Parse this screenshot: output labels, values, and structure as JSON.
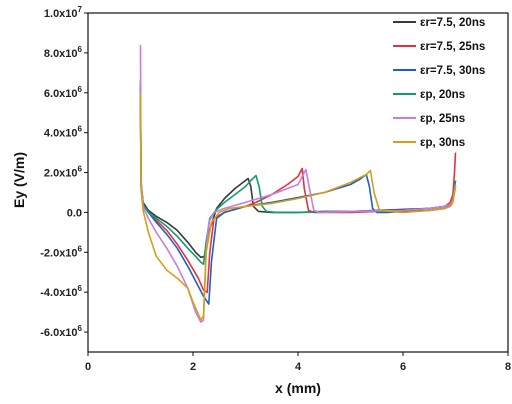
{
  "chart_data": {
    "type": "line",
    "xlabel": "x (mm)",
    "ylabel": "Ey (V/m)",
    "xlim": [
      0,
      8
    ],
    "ylim": [
      -7000000,
      10000000
    ],
    "grid": false,
    "legend_position": "top-right",
    "x_ticks": [
      {
        "value": 0,
        "label": "0"
      },
      {
        "value": 2,
        "label": "2"
      },
      {
        "value": 4,
        "label": "4"
      },
      {
        "value": 6,
        "label": "6"
      },
      {
        "value": 8,
        "label": "8"
      }
    ],
    "y_ticks": [
      {
        "value": 10000000,
        "mantissa": "1.0x10",
        "exp": "7"
      },
      {
        "value": 8000000,
        "mantissa": "8.0x10",
        "exp": "6"
      },
      {
        "value": 6000000,
        "mantissa": "6.0x10",
        "exp": "6"
      },
      {
        "value": 4000000,
        "mantissa": "4.0x10",
        "exp": "6"
      },
      {
        "value": 2000000,
        "mantissa": "2.0x10",
        "exp": "6"
      },
      {
        "value": 0,
        "mantissa": "0.0",
        "exp": ""
      },
      {
        "value": -2000000,
        "mantissa": "-2.0x10",
        "exp": "6"
      },
      {
        "value": -4000000,
        "mantissa": "-4.0x10",
        "exp": "6"
      },
      {
        "value": -6000000,
        "mantissa": "-6.0x10",
        "exp": "6"
      }
    ],
    "series": [
      {
        "name": "εr=7.5, 20ns",
        "color": "#3a3a3a",
        "x": [
          1.0,
          1.01,
          1.05,
          1.15,
          1.3,
          1.5,
          1.7,
          1.9,
          2.05,
          2.15,
          2.22,
          2.3,
          2.45,
          2.6,
          2.8,
          2.95,
          3.05,
          3.1,
          3.15,
          3.25,
          3.5,
          4.0,
          4.5,
          5.0,
          5.5,
          6.0,
          6.5,
          6.8,
          6.9,
          6.95,
          7.0
        ],
        "y": [
          6200000,
          1500000,
          500000,
          100000,
          -200000,
          -500000,
          -900000,
          -1500000,
          -2000000,
          -2250000,
          -2200000,
          -1000000,
          200000,
          700000,
          1200000,
          1500000,
          1700000,
          1300000,
          300000,
          50000,
          0,
          0,
          50000,
          50000,
          100000,
          150000,
          200000,
          300000,
          400000,
          600000,
          1300000
        ]
      },
      {
        "name": "εr=7.5, 25ns",
        "color": "#e8303c",
        "x": [
          1.0,
          1.01,
          1.05,
          1.15,
          1.3,
          1.5,
          1.7,
          1.9,
          2.1,
          2.2,
          2.27,
          2.32,
          2.4,
          2.6,
          2.8,
          3.0,
          3.2,
          3.5,
          3.8,
          4.0,
          4.08,
          4.12,
          4.2,
          4.3,
          4.5,
          5.0,
          5.5,
          6.0,
          6.5,
          6.8,
          6.9,
          6.95,
          6.98,
          7.0
        ],
        "y": [
          5900000,
          1400000,
          400000,
          0,
          -400000,
          -900000,
          -1600000,
          -2400000,
          -3300000,
          -3900000,
          -4000000,
          -2000000,
          -300000,
          0,
          150000,
          300000,
          500000,
          900000,
          1400000,
          1800000,
          2200000,
          1200000,
          100000,
          0,
          0,
          0,
          50000,
          100000,
          200000,
          300000,
          500000,
          900000,
          2000000,
          3000000
        ]
      },
      {
        "name": "εr=7.5, 30ns",
        "color": "#1f5fc9",
        "x": [
          1.0,
          1.01,
          1.05,
          1.15,
          1.3,
          1.5,
          1.7,
          1.9,
          2.1,
          2.2,
          2.3,
          2.35,
          2.45,
          2.6,
          2.8,
          3.0,
          3.5,
          4.0,
          4.5,
          5.0,
          5.2,
          5.3,
          5.36,
          5.42,
          5.5,
          5.7,
          6.0,
          6.5,
          6.8,
          6.9,
          6.95,
          7.0
        ],
        "y": [
          6600000,
          1400000,
          400000,
          0,
          -500000,
          -1100000,
          -1800000,
          -2700000,
          -3700000,
          -4200000,
          -4600000,
          -2500000,
          -300000,
          0,
          150000,
          300000,
          500000,
          750000,
          1000000,
          1400000,
          1700000,
          1900000,
          1300000,
          200000,
          0,
          0,
          50000,
          100000,
          200000,
          350000,
          600000,
          1600000
        ]
      },
      {
        "name": "εp, 20ns",
        "color": "#0e9e6e",
        "x": [
          1.0,
          1.01,
          1.05,
          1.15,
          1.3,
          1.5,
          1.7,
          1.9,
          2.05,
          2.15,
          2.2,
          2.25,
          2.32,
          2.45,
          2.6,
          2.8,
          3.0,
          3.1,
          3.2,
          3.26,
          3.32,
          3.4,
          3.6,
          4.0,
          5.0,
          6.0,
          6.5,
          6.8,
          6.9,
          6.95,
          7.0
        ],
        "y": [
          6400000,
          1500000,
          400000,
          0,
          -300000,
          -700000,
          -1200000,
          -1800000,
          -2200000,
          -2500000,
          -2600000,
          -1500000,
          -300000,
          150000,
          500000,
          900000,
          1300000,
          1600000,
          1850000,
          1300000,
          300000,
          50000,
          0,
          0,
          50000,
          100000,
          200000,
          300000,
          400000,
          600000,
          1600000
        ]
      },
      {
        "name": "εp, 25ns",
        "color": "#c77ce6",
        "x": [
          1.0,
          1.01,
          1.05,
          1.15,
          1.3,
          1.5,
          1.7,
          1.9,
          2.05,
          2.15,
          2.2,
          2.25,
          2.3,
          2.4,
          2.6,
          2.8,
          3.0,
          3.5,
          4.0,
          4.15,
          4.22,
          4.3,
          4.4,
          5.0,
          6.0,
          6.5,
          6.8,
          6.9,
          6.95,
          7.0
        ],
        "y": [
          8400000,
          1600000,
          300000,
          -300000,
          -1000000,
          -1800000,
          -2700000,
          -3800000,
          -5000000,
          -5500000,
          -5400000,
          -2000000,
          -500000,
          0,
          200000,
          350000,
          500000,
          900000,
          1400000,
          2150000,
          1200000,
          100000,
          0,
          50000,
          100000,
          200000,
          300000,
          400000,
          600000,
          1400000
        ]
      },
      {
        "name": "εp, 30ns",
        "color": "#d4a017",
        "x": [
          1.0,
          1.01,
          1.05,
          1.15,
          1.3,
          1.5,
          1.7,
          1.9,
          2.0,
          2.1,
          2.15,
          2.2,
          2.25,
          2.35,
          2.5,
          2.7,
          3.0,
          3.5,
          4.0,
          4.5,
          5.0,
          5.3,
          5.38,
          5.45,
          5.55,
          6.0,
          6.5,
          6.8,
          6.9,
          6.95,
          7.0
        ],
        "y": [
          6000000,
          1200000,
          100000,
          -1000000,
          -2200000,
          -2900000,
          -3300000,
          -3800000,
          -4500000,
          -5100000,
          -5400000,
          -5200000,
          -2000000,
          -500000,
          0,
          200000,
          300000,
          450000,
          700000,
          1000000,
          1500000,
          1900000,
          2100000,
          1000000,
          100000,
          0,
          100000,
          200000,
          300000,
          500000,
          1300000
        ]
      }
    ]
  }
}
